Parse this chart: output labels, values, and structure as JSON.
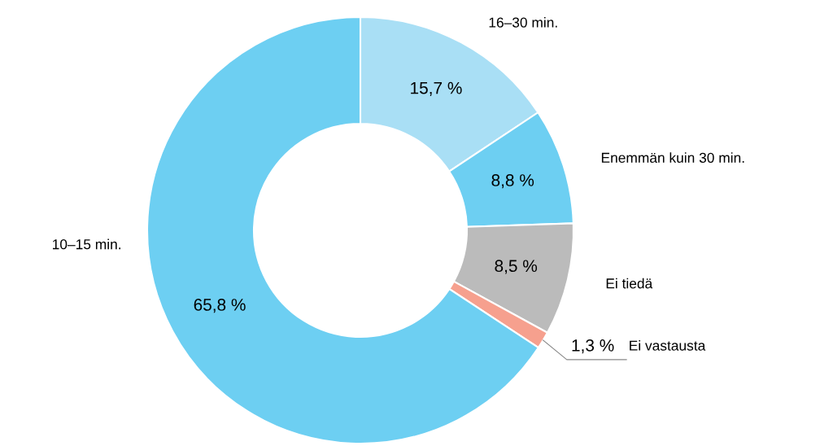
{
  "chart_data": {
    "type": "donut",
    "categories": [
      "16–30 min.",
      "Enemmän kuin 30 min.",
      "Ei tiedä",
      "Ei vastausta",
      "10–15 min."
    ],
    "values": [
      15.7,
      8.8,
      8.5,
      1.3,
      65.8
    ],
    "colors": [
      "#a9dff5",
      "#6dcff2",
      "#bbbbbb",
      "#f6a08e",
      "#6dcff2"
    ],
    "value_labels": [
      "15,7 %",
      "8,8 %",
      "8,5 %",
      "1,3 %",
      "65,8 %"
    ]
  }
}
